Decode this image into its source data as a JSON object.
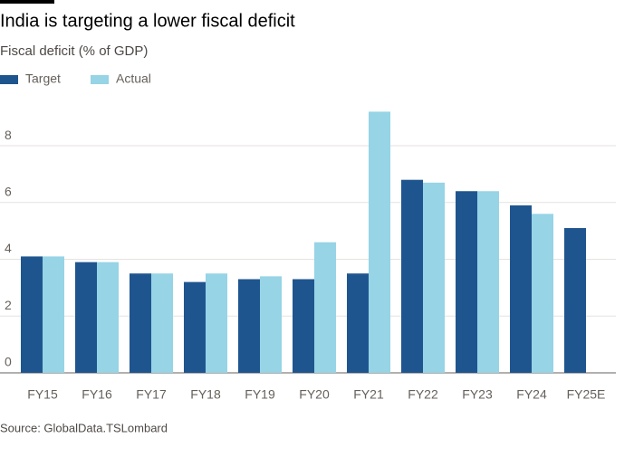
{
  "chart_data": {
    "type": "bar",
    "title": "India is targeting a lower fiscal deficit",
    "subtitle": "Fiscal deficit (% of GDP)",
    "source": "Source: GlobalData.TSLombard",
    "categories": [
      "FY15",
      "FY16",
      "FY17",
      "FY18",
      "FY19",
      "FY20",
      "FY21",
      "FY22",
      "FY23",
      "FY24",
      "FY25E"
    ],
    "series": [
      {
        "name": "Target",
        "color": "#1f558f",
        "values": [
          4.1,
          3.9,
          3.5,
          3.2,
          3.3,
          3.3,
          3.5,
          6.8,
          6.4,
          5.9,
          5.1
        ]
      },
      {
        "name": "Actual",
        "color": "#96d4e6",
        "values": [
          4.1,
          3.9,
          3.5,
          3.5,
          3.4,
          4.6,
          9.2,
          6.7,
          6.4,
          5.6,
          null
        ]
      }
    ],
    "ylim": [
      0,
      9.5
    ],
    "yticks": [
      0,
      2,
      4,
      6,
      8
    ],
    "grid": true,
    "legend": "top-left"
  }
}
